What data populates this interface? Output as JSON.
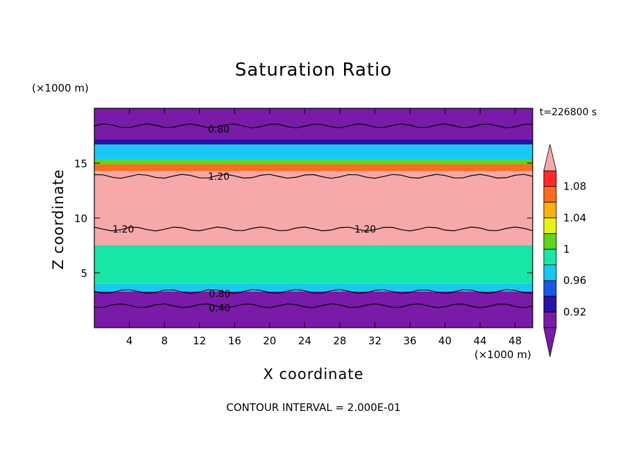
{
  "title": "Saturation Ratio",
  "y_unit": "(×1000 m)",
  "x_unit": "(×1000 m)",
  "time_label": "t=226800 s",
  "x_axis_label": "X coordinate",
  "y_axis_label": "Z coordinate",
  "contour_interval": "CONTOUR INTERVAL = 2.000E-01",
  "chart_data": {
    "type": "heatmap",
    "title": "Saturation Ratio",
    "xlabel": "X coordinate",
    "ylabel": "Z coordinate",
    "xlim": [
      0,
      50
    ],
    "ylim": [
      0,
      20
    ],
    "x_ticks": [
      4,
      8,
      12,
      16,
      20,
      24,
      28,
      32,
      36,
      40,
      44,
      48
    ],
    "y_ticks": [
      5,
      10,
      15
    ],
    "colorbar": {
      "levels": [
        0.9,
        0.92,
        0.94,
        0.96,
        0.98,
        1.0,
        1.02,
        1.04,
        1.06,
        1.08,
        1.1
      ],
      "tick_labels": [
        "0.92",
        "0.96",
        "1",
        "1.04",
        "1.08"
      ],
      "tick_values": [
        0.92,
        0.96,
        1.0,
        1.04,
        1.08
      ],
      "colors": [
        "#7a1aa8",
        "#2a12a8",
        "#1f55e6",
        "#18c8f0",
        "#18e6a6",
        "#5fd41e",
        "#e8f21a",
        "#ffae14",
        "#ff6a1e",
        "#ff2a2a",
        "#f7a9a9"
      ],
      "under_color": "#7a1aa8",
      "over_color": "#f7a9a9"
    },
    "bands": [
      {
        "z_bottom": 0.0,
        "z_top": 3.3,
        "color": "#7a1aa8"
      },
      {
        "z_bottom": 3.3,
        "z_top": 4.0,
        "color": "#18c8f0"
      },
      {
        "z_bottom": 4.0,
        "z_top": 7.5,
        "color": "#18e6a6"
      },
      {
        "z_bottom": 7.5,
        "z_top": 14.3,
        "color": "#f7a9a9"
      },
      {
        "z_bottom": 14.3,
        "z_top": 14.9,
        "color": "#ff6a1e"
      },
      {
        "z_bottom": 14.9,
        "z_top": 15.3,
        "color": "#5fd41e"
      },
      {
        "z_bottom": 15.3,
        "z_top": 16.7,
        "color": "#18c8f0"
      },
      {
        "z_bottom": 16.7,
        "z_top": 17.2,
        "color": "#2a12a8"
      },
      {
        "z_bottom": 17.2,
        "z_top": 20.0,
        "color": "#7a1aa8"
      }
    ],
    "contour_labels": [
      {
        "text": "0.80",
        "x": 14.2,
        "z": 18.1
      },
      {
        "text": "1.20",
        "x": 14.2,
        "z": 13.8
      },
      {
        "text": "1.20",
        "x": 3.3,
        "z": 9.0
      },
      {
        "text": "1.20",
        "x": 30.9,
        "z": 9.0
      },
      {
        "text": "0.80",
        "x": 14.3,
        "z": 3.1
      },
      {
        "text": "0.40",
        "x": 14.3,
        "z": 1.8
      }
    ],
    "contour_lines_z": [
      18.4,
      13.8,
      9.0,
      3.3,
      2.0
    ]
  }
}
